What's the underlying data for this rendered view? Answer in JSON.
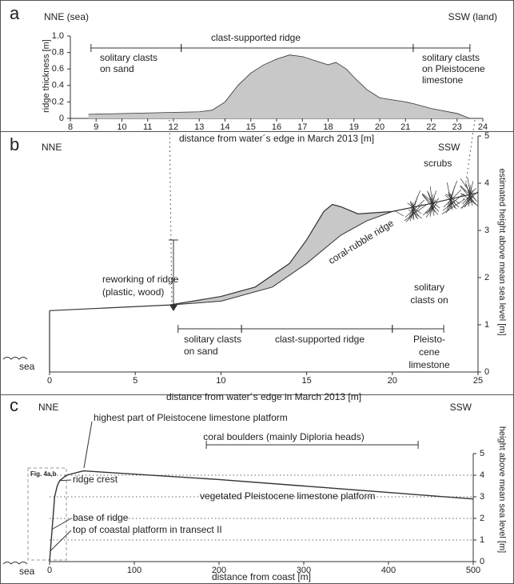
{
  "chart_data": [
    {
      "type": "area",
      "label": "a",
      "x_label": "distance from water´s edge in March 2013 [m]",
      "y_label": "ridge thickness [m]",
      "x": [
        8.7,
        13,
        13.5,
        14,
        14.5,
        15,
        15.5,
        16,
        16.5,
        17,
        17.5,
        18,
        18.3,
        18.7,
        19,
        19.5,
        20,
        21,
        21.3,
        22,
        23,
        23.5
      ],
      "values": [
        0.05,
        0.08,
        0.1,
        0.2,
        0.4,
        0.55,
        0.65,
        0.72,
        0.77,
        0.75,
        0.7,
        0.65,
        0.68,
        0.6,
        0.5,
        0.35,
        0.25,
        0.2,
        0.18,
        0.12,
        0.06,
        0
      ],
      "color": "#c8c8c8",
      "xlim": [
        8,
        24
      ],
      "xticks": [
        8,
        9,
        10,
        11,
        12,
        13,
        14,
        15,
        16,
        17,
        18,
        19,
        20,
        21,
        22,
        23,
        24
      ],
      "ylim": [
        0,
        1
      ],
      "yticks": [
        0,
        0.2,
        0.4,
        0.6,
        0.8,
        {
          "value": 1,
          "label": "1.0"
        }
      ],
      "annotations": {
        "nne": "NNE (sea)",
        "ssw": "SSW (land)"
      },
      "zones": [
        {
          "label": [
            "solitary clasts",
            "on sand"
          ],
          "x": [
            8.8,
            12.3
          ]
        },
        {
          "label": [
            "clast-supported ridge"
          ],
          "x": [
            12.3,
            21.3
          ]
        },
        {
          "label": [
            "solitary clasts",
            "on Pleistocene",
            "limestone"
          ],
          "x": [
            21.3,
            23.5
          ]
        }
      ]
    },
    {
      "type": "ridge",
      "label": "b",
      "x_label": "distance from water´s edge in March 2013 [m]",
      "y_label": "estimated height above mean sea level [m]",
      "x": [
        0,
        7,
        10,
        12,
        14,
        15,
        16,
        16.5,
        17,
        18,
        20,
        22,
        25
      ],
      "values": [
        1.3,
        1.42,
        1.6,
        1.8,
        2.3,
        2.8,
        3.4,
        3.55,
        3.5,
        3.35,
        3.4,
        3.55,
        3.8
      ],
      "lower": {
        "x": [
          7,
          10,
          13,
          15,
          17,
          18.5,
          20
        ],
        "values": [
          1.42,
          1.5,
          1.8,
          2.3,
          2.9,
          3.2,
          3.4
        ]
      },
      "color": "#c8c8c8",
      "xlim": [
        0,
        25
      ],
      "xticks": [
        0,
        5,
        10,
        15,
        20,
        25
      ],
      "ylim": [
        0,
        5
      ],
      "yticks": [
        0,
        1,
        2,
        3,
        4,
        5
      ],
      "annotations": {
        "nne": "NNE",
        "ssw": "SSW",
        "scrubs": "scrubs",
        "sea": "sea",
        "ridge": "coral-rubble ridge",
        "rework1": "reworking of ridge",
        "rework2": "(plastic, wood)"
      },
      "zones": [
        {
          "label": [
            "solitary clasts",
            "on sand"
          ],
          "x": [
            7.5,
            11.2
          ]
        },
        {
          "label": [
            "clast-supported ridge"
          ],
          "x": [
            11.2,
            20
          ]
        },
        {
          "label": [
            "solitary",
            "clasts on",
            "Pleisto-",
            "cene",
            "limestone"
          ],
          "x": [
            20,
            23
          ]
        }
      ]
    },
    {
      "type": "line",
      "label": "c",
      "x_label": "distance from coast [m]",
      "y_label": "height above mean sea level [m]",
      "x": [
        0,
        3,
        6,
        9,
        12,
        20,
        40,
        60,
        100,
        200,
        300,
        400,
        500
      ],
      "values": [
        0,
        1.5,
        3.0,
        3.5,
        3.75,
        4.0,
        4.2,
        4.15,
        4.05,
        3.8,
        3.5,
        3.2,
        2.9
      ],
      "color": "#333333",
      "grid": true,
      "xlim": [
        0,
        500
      ],
      "xticks": [
        0,
        100,
        200,
        300,
        400,
        500
      ],
      "ylim": [
        0,
        5
      ],
      "yticks": [
        0,
        1,
        2,
        3,
        4,
        5
      ],
      "annotations": {
        "nne": "NNE",
        "ssw": "SSW",
        "highest": "highest part of Pleistocene limestone platform",
        "crest": "ridge crest",
        "vegetated": "vegetated Pleistocene limestone platform",
        "base": "base of ridge",
        "top": "top of coastal platform in transect II",
        "sea": "sea",
        "fig": "Fig. 4a,b"
      },
      "zones": [
        {
          "label": [
            "coral boulders (mainly Diploria heads)"
          ],
          "x": [
            185,
            435
          ]
        }
      ]
    }
  ]
}
